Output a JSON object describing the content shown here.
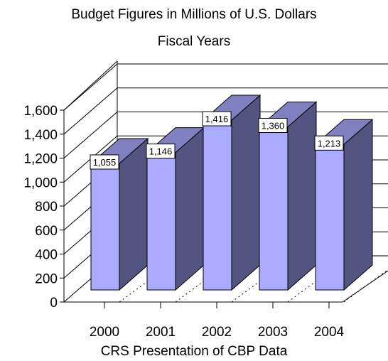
{
  "chart_data": {
    "type": "bar",
    "title": "Budget Figures in Millions of U.S. Dollars",
    "subtitle": "Fiscal Years",
    "xlabel": "CRS Presentation of CBP Data",
    "ylabel": "",
    "categories": [
      "2000",
      "2001",
      "2002",
      "2003",
      "2004"
    ],
    "values": [
      1055,
      1146,
      1416,
      1360,
      1213
    ],
    "data_labels": [
      "1,055",
      "1,146",
      "1,416",
      "1,360",
      "1,213"
    ],
    "ylim": [
      0,
      1600
    ],
    "yticks": [
      0,
      200,
      400,
      600,
      800,
      1000,
      1200,
      1400,
      1600
    ],
    "ytick_labels": [
      "0",
      "200",
      "400",
      "600",
      "800",
      "1,000",
      "1,200",
      "1,400",
      "1,600"
    ],
    "grid": true,
    "style": "3d",
    "colors": {
      "bar_front": "#aaaaff",
      "bar_side": "#545480",
      "bar_top": "#8080c0"
    }
  }
}
